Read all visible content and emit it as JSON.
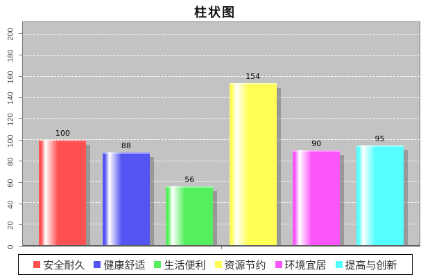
{
  "chart_data": {
    "type": "bar",
    "title": "柱状图",
    "categories": [
      "安全耐久",
      "健康舒适",
      "生活便利",
      "资源节约",
      "环境宜居",
      "提高与创新"
    ],
    "values": [
      100,
      88,
      56,
      154,
      90,
      95
    ],
    "colors": [
      "#ff5151",
      "#5454f2",
      "#53ef5c",
      "#ffff55",
      "#fb55fb",
      "#55ffff"
    ],
    "bar_value_labels": [
      "100",
      "88",
      "56",
      "154",
      "90",
      "95"
    ],
    "xlabel": "",
    "ylabel": "",
    "ylim": [
      0,
      212
    ],
    "yticks": [
      0,
      20,
      40,
      60,
      80,
      100,
      120,
      140,
      160,
      180,
      200
    ],
    "grid": true,
    "gridline_style": "white-dashed",
    "plot_background": "#c3c3c3",
    "legend_position": "bottom"
  }
}
